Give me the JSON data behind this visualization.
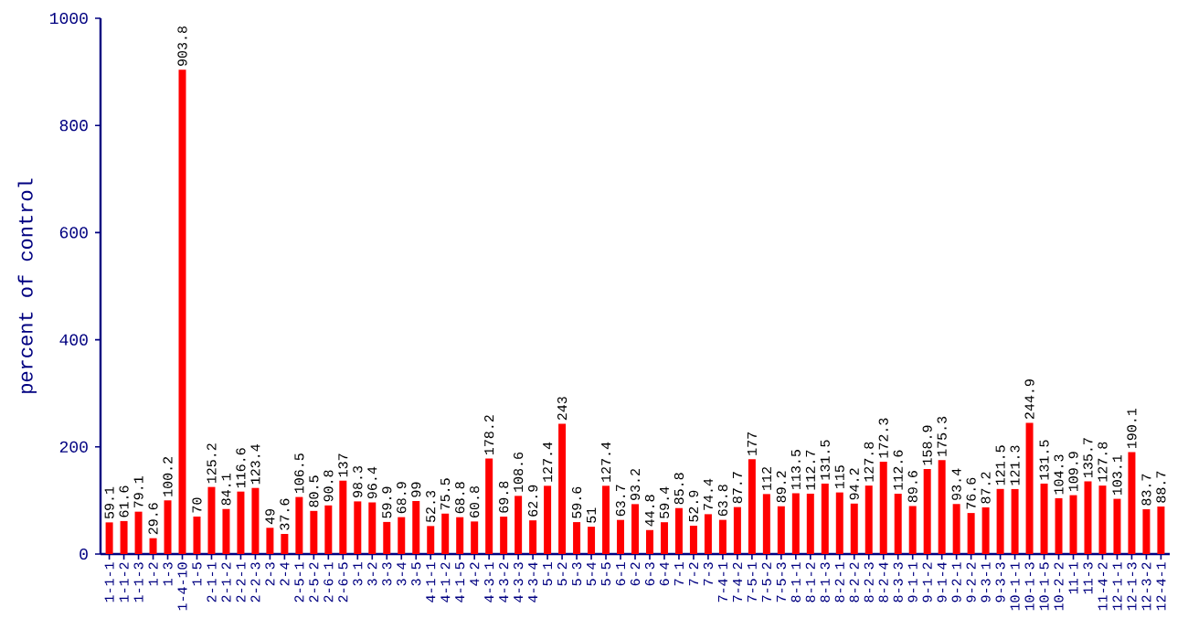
{
  "chart_data": {
    "type": "bar",
    "ylabel": "percent of control",
    "categories": [
      "1-1-1",
      "1-1-2",
      "1-1-3",
      "1-2",
      "1-3",
      "1-4-10",
      "1-5",
      "2-1-1",
      "2-1-2",
      "2-2-1",
      "2-2-3",
      "2-3",
      "2-4",
      "2-5-1",
      "2-5-2",
      "2-6-1",
      "2-6-5",
      "3-1",
      "3-2",
      "3-3",
      "3-4",
      "3-5",
      "4-1-1",
      "4-1-2",
      "4-1-5",
      "4-2",
      "4-3-1",
      "4-3-2",
      "4-3-3",
      "4-3-4",
      "5-1",
      "5-2",
      "5-3",
      "5-4",
      "5-5",
      "6-1",
      "6-2",
      "6-3",
      "6-4",
      "7-1",
      "7-2",
      "7-3",
      "7-4-1",
      "7-4-2",
      "7-5-1",
      "7-5-2",
      "7-5-3",
      "8-1-1",
      "8-1-2",
      "8-1-3",
      "8-2-1",
      "8-2-2",
      "8-2-3",
      "8-2-4",
      "8-3-3",
      "9-1-1",
      "9-1-2",
      "9-1-4",
      "9-2-1",
      "9-2-2",
      "9-3-1",
      "9-3-3",
      "10-1-1",
      "10-1-3",
      "10-1-5",
      "10-2-2",
      "11-1",
      "11-3",
      "11-4-2",
      "12-1-1",
      "12-1-3",
      "12-3-2",
      "12-4-1"
    ],
    "values": [
      59.1,
      61.6,
      79.1,
      29.6,
      100.2,
      903.8,
      70,
      125.2,
      84.1,
      116.6,
      123.4,
      49,
      37.6,
      106.5,
      80.5,
      90.8,
      137,
      98.3,
      96.4,
      59.9,
      68.9,
      99,
      52.3,
      75.5,
      68.8,
      60.8,
      178.2,
      69.8,
      108.6,
      62.9,
      127.4,
      243,
      59.6,
      51,
      127.4,
      63.7,
      93.2,
      44.8,
      59.4,
      85.8,
      52.9,
      74.4,
      63.8,
      87.7,
      177,
      112,
      89.2,
      113.5,
      112.7,
      131.5,
      115,
      94.2,
      127.8,
      172.3,
      112.6,
      89.6,
      158.9,
      175.3,
      93.4,
      76.6,
      87.2,
      121.5,
      121.3,
      244.9,
      131.5,
      104.3,
      109.9,
      135.7,
      127.8,
      103.1,
      190.1,
      83.7,
      88.7
    ],
    "color": "#ff0000",
    "ylim": [
      0,
      1000
    ],
    "yticks": [
      0,
      200,
      400,
      600,
      800,
      1000
    ],
    "data_labels": true
  }
}
